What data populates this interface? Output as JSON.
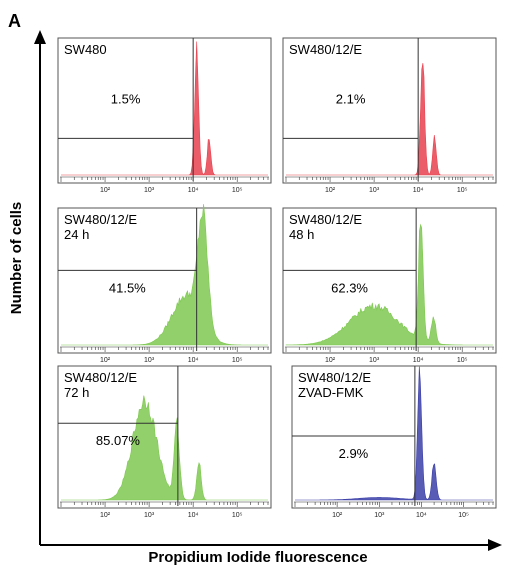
{
  "figure": {
    "panel_label": "A",
    "xlabel": "Propidium Iodide fluorescence",
    "ylabel": "Number of cells",
    "colors": {
      "red": "#e8424f",
      "green": "#7ec850",
      "blue": "#3b3fa8",
      "gate": "#333333"
    }
  },
  "chart_data": [
    {
      "type": "area",
      "name": "SW480",
      "header": [
        "SW480"
      ],
      "gate_percent_label": "1.5%",
      "gate_percent": 1.5,
      "color": "red",
      "x_scale": "log",
      "xlim": [
        10,
        500000
      ],
      "tick_labels": [
        "10²",
        "10³",
        "10⁴",
        "10⁵"
      ],
      "gate_x": 10000,
      "gate_height_fraction": 0.28,
      "peaks": [
        {
          "center_log": 4.08,
          "width": 0.045,
          "height": 0.95
        },
        {
          "center_log": 4.36,
          "width": 0.04,
          "height": 0.28
        }
      ],
      "broad": []
    },
    {
      "type": "area",
      "name": "SW480/12/E",
      "header": [
        "SW480/12/E"
      ],
      "gate_percent_label": "2.1%",
      "gate_percent": 2.1,
      "color": "red",
      "x_scale": "log",
      "xlim": [
        10,
        500000
      ],
      "tick_labels": [
        "10²",
        "10³",
        "10⁴",
        "10⁵"
      ],
      "gate_x": 10000,
      "gate_height_fraction": 0.28,
      "peaks": [
        {
          "center_log": 4.1,
          "width": 0.045,
          "height": 0.93
        },
        {
          "center_log": 4.37,
          "width": 0.04,
          "height": 0.3
        }
      ],
      "broad": []
    },
    {
      "type": "area",
      "name": "SW480/12/E 24 h",
      "header": [
        "SW480/12/E",
        "24 h"
      ],
      "gate_percent_label": "41.5%",
      "gate_percent": 41.5,
      "color": "green",
      "x_scale": "log",
      "xlim": [
        10,
        500000
      ],
      "tick_labels": [
        "10²",
        "10³",
        "10⁴",
        "10⁵"
      ],
      "gate_x": 12000,
      "gate_height_fraction": 0.57,
      "peaks": [
        {
          "center_log": 4.22,
          "width": 0.11,
          "height": 0.82
        }
      ],
      "broad": [
        {
          "center_log": 3.85,
          "width": 0.33,
          "height": 0.38
        }
      ]
    },
    {
      "type": "area",
      "name": "SW480/12/E 48 h",
      "header": [
        "SW480/12/E",
        "48 h"
      ],
      "gate_percent_label": "62.3%",
      "gate_percent": 62.3,
      "color": "green",
      "x_scale": "log",
      "xlim": [
        10,
        500000
      ],
      "tick_labels": [
        "10²",
        "10³",
        "10⁴",
        "10⁵"
      ],
      "gate_x": 9000,
      "gate_height_fraction": 0.57,
      "peaks": [
        {
          "center_log": 4.06,
          "width": 0.05,
          "height": 0.97
        },
        {
          "center_log": 4.35,
          "width": 0.05,
          "height": 0.2
        }
      ],
      "broad": [
        {
          "center_log": 3.0,
          "width": 0.55,
          "height": 0.3
        }
      ]
    },
    {
      "type": "area",
      "name": "SW480/12/E 72 h",
      "header": [
        "SW480/12/E",
        "72 h"
      ],
      "gate_percent_label": "85.07%",
      "gate_percent": 85.07,
      "color": "green",
      "x_scale": "log",
      "xlim": [
        10,
        500000
      ],
      "tick_labels": [
        "10²",
        "10³",
        "10⁴",
        "10⁵"
      ],
      "gate_x": 4500,
      "gate_height_fraction": 0.6,
      "peaks": [
        {
          "center_log": 3.63,
          "width": 0.06,
          "height": 0.58
        },
        {
          "center_log": 4.13,
          "width": 0.05,
          "height": 0.3
        }
      ],
      "broad": [
        {
          "center_log": 2.9,
          "width": 0.27,
          "height": 0.78
        }
      ]
    },
    {
      "type": "area",
      "name": "SW480/12/E ZVAD-FMK",
      "header": [
        "SW480/12/E",
        "ZVAD-FMK"
      ],
      "gate_percent_label": "2.9%",
      "gate_percent": 2.9,
      "color": "blue",
      "x_scale": "log",
      "xlim": [
        10,
        500000
      ],
      "tick_labels": [
        "10²",
        "10³",
        "10⁴",
        "10⁵"
      ],
      "gate_x": 7000,
      "gate_height_fraction": 0.5,
      "peaks": [
        {
          "center_log": 3.96,
          "width": 0.05,
          "height": 0.98
        },
        {
          "center_log": 4.3,
          "width": 0.05,
          "height": 0.28
        }
      ],
      "broad": [
        {
          "center_log": 3.0,
          "width": 0.5,
          "height": 0.02
        }
      ]
    }
  ]
}
